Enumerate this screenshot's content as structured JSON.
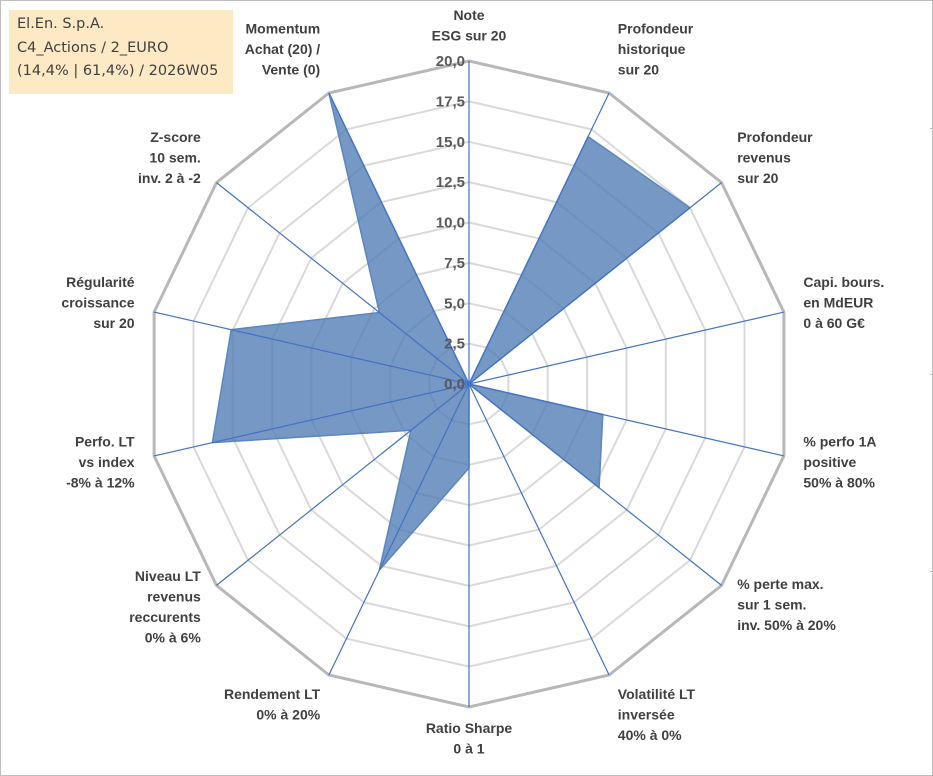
{
  "info": {
    "line1": "El.En. S.p.A.",
    "line2": "C4_Actions / 2_EURO",
    "line3": "(14,4% | 61,4%) / 2026W05"
  },
  "chart_data": {
    "type": "radar",
    "title": "",
    "rmax": 20,
    "tick_values": [
      0,
      2.5,
      5,
      7.5,
      10,
      12.5,
      15,
      17.5,
      20
    ],
    "tick_labels": [
      "0,0",
      "2,5",
      "5,0",
      "7,5",
      "10,0",
      "12,5",
      "15,0",
      "17,5",
      "20,0"
    ],
    "axes": [
      {
        "label": [
          "Note",
          "ESG sur 20"
        ],
        "value": 0
      },
      {
        "label": [
          "Profondeur",
          "historique",
          "sur 20"
        ],
        "value": 17
      },
      {
        "label": [
          "Profondeur",
          "revenus",
          "sur 20"
        ],
        "value": 17.5
      },
      {
        "label": [
          "Capi. bours.",
          "en MdEUR",
          "0 à 60 G€"
        ],
        "value": 0
      },
      {
        "label": [
          "% perfo 1A",
          "positive",
          "50% à 80%"
        ],
        "value": 8.5
      },
      {
        "label": [
          "% perte max.",
          "sur 1 sem.",
          "inv. 50% à 20%"
        ],
        "value": 10.3
      },
      {
        "label": [
          "Volatilité LT",
          "inversée",
          "40% à 0%"
        ],
        "value": 0
      },
      {
        "label": [
          "Ratio Sharpe",
          "0 à 1"
        ],
        "value": 5.2
      },
      {
        "label": [
          "Rendement LT",
          "0% à 20%"
        ],
        "value": 12.8
      },
      {
        "label": [
          "Niveau LT",
          "revenus",
          "reccurents",
          "0% à 6%"
        ],
        "value": 4.6
      },
      {
        "label": [
          "Perfo. LT",
          "vs index",
          "-8% à 12%"
        ],
        "value": 16.3
      },
      {
        "label": [
          "Régularité",
          "croissance",
          "sur 20"
        ],
        "value": 15.1
      },
      {
        "label": [
          "Z-score",
          "10 sem.",
          "inv. 2 à -2"
        ],
        "value": 7.1
      },
      {
        "label": [
          "Momentum",
          "Achat (20) /",
          "Vente (0)"
        ],
        "value": 20
      }
    ],
    "series": [
      {
        "name": "El.En. S.p.A.",
        "color": "#4f7bb5"
      }
    ],
    "grid": true
  }
}
